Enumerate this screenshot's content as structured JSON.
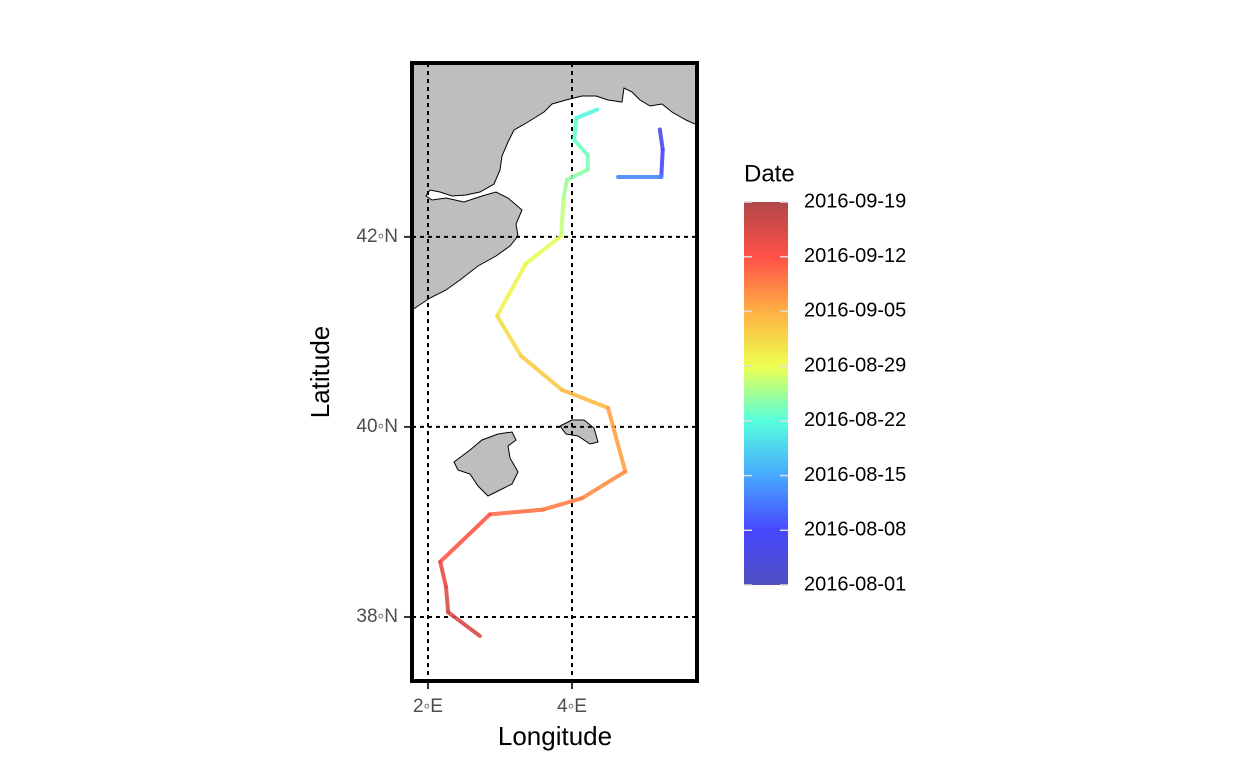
{
  "chart_data": {
    "type": "track-map",
    "x_label": "Longitude",
    "y_label": "Latitude",
    "xlim": [
      1.778,
      5.736
    ],
    "ylim": [
      37.326,
      43.83
    ],
    "xticks": [
      {
        "value": 2,
        "label": "2◦E"
      },
      {
        "value": 4,
        "label": "4◦E"
      }
    ],
    "yticks": [
      {
        "value": 38,
        "label": "38◦N"
      },
      {
        "value": 40,
        "label": "40◦N"
      },
      {
        "value": 42,
        "label": "42◦N"
      }
    ],
    "grid": true,
    "track": {
      "lon": [
        5.22,
        5.26,
        5.24,
        4.64,
        null,
        4.35,
        4.06,
        4.03,
        4.22,
        4.22,
        3.93,
        3.88,
        3.85,
        3.36,
        2.96,
        3.29,
        3.86,
        4.5,
        4.74,
        4.14,
        3.6,
        2.86,
        2.17,
        2.25,
        2.28,
        2.72
      ],
      "lat": [
        43.13,
        42.92,
        42.63,
        42.63,
        null,
        43.34,
        43.25,
        43.02,
        42.86,
        42.71,
        42.6,
        42.39,
        42.01,
        41.72,
        41.17,
        40.75,
        40.39,
        40.2,
        39.53,
        39.25,
        39.13,
        39.08,
        38.58,
        38.32,
        38.05,
        37.8
      ],
      "dates": [
        "2016-08-05",
        "2016-08-07",
        "2016-08-09",
        "2016-08-16",
        null,
        "2016-08-21",
        "2016-08-22",
        "2016-08-23",
        "2016-08-24",
        "2016-08-24",
        "2016-08-25",
        "2016-08-26",
        "2016-08-28",
        "2016-08-29",
        "2016-08-31",
        "2016-09-02",
        "2016-09-03",
        "2016-09-05",
        "2016-09-07",
        "2016-09-08",
        "2016-09-09",
        "2016-09-10",
        "2016-09-13",
        "2016-09-14",
        "2016-09-15",
        "2016-09-16"
      ]
    },
    "colorbar": {
      "title": "Date",
      "lim": [
        "2016-08-01",
        "2016-09-19"
      ],
      "ticks": [
        "2016-08-01",
        "2016-08-08",
        "2016-08-15",
        "2016-08-22",
        "2016-08-29",
        "2016-09-05",
        "2016-09-12",
        "2016-09-19"
      ],
      "colors": [
        "#5050c0",
        "#4848ff",
        "#48a8ff",
        "#55ffdd",
        "#eeff50",
        "#ffb044",
        "#ff5048",
        "#b04848"
      ]
    }
  }
}
